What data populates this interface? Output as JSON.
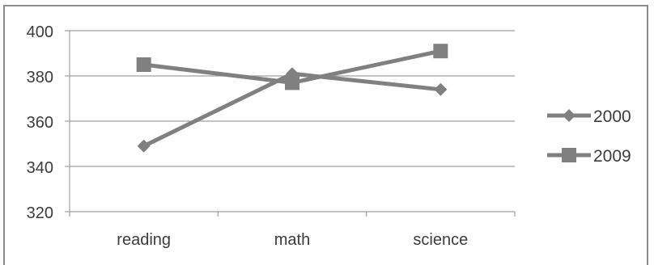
{
  "chart_data": {
    "type": "line",
    "categories": [
      "reading",
      "math",
      "science"
    ],
    "series": [
      {
        "name": "2000",
        "values": [
          349,
          381,
          374
        ],
        "marker": "diamond"
      },
      {
        "name": "2009",
        "values": [
          385,
          377,
          391
        ],
        "marker": "square"
      }
    ],
    "title": "",
    "xlabel": "",
    "ylabel": "",
    "ylim": [
      320,
      400
    ],
    "yticks": [
      320,
      340,
      360,
      380,
      400
    ],
    "grid": true,
    "legend": "right",
    "colors": {
      "series": "#808080",
      "grid": "#a0a0a0",
      "text": "#3c3c3c"
    }
  }
}
